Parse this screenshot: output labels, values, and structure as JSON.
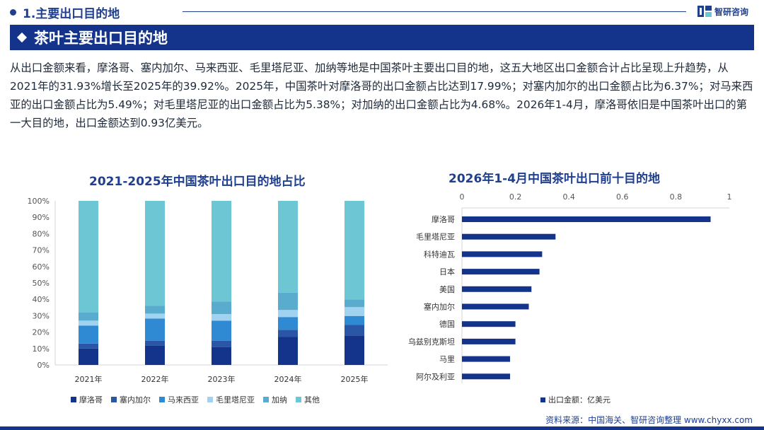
{
  "header": {
    "section_title": "1.主要出口目的地",
    "brand_name": "智研咨询",
    "banner_title": "茶叶主要出口目的地"
  },
  "intro_text": "从出口金额来看，摩洛哥、塞内加尔、马来西亚、毛里塔尼亚、加纳等地是中国茶叶主要出口目的地，这五大地区出口金额合计占比呈现上升趋势，从2021年的31.93%增长至2025年的39.92%。2025年，中国茶叶对摩洛哥的出口金额占比达到17.99%；对塞内加尔的出口金额占比为6.37%；对马来西亚的出口金额占比为5.49%；对毛里塔尼亚的出口金额占比为5.38%；对加纳的出口金额占比为4.68%。2026年1-4月，摩洛哥依旧是中国茶叶出口的第一大目的地，出口金额达到0.93亿美元。",
  "colors": {
    "brand_navy": "#13348a",
    "title_blue": "#1f3f8f"
  },
  "chart_data": [
    {
      "type": "bar",
      "stacked": true,
      "title": "2021-2025年中国茶叶出口目的地占比",
      "categories": [
        "2021年",
        "2022年",
        "2023年",
        "2024年",
        "2025年"
      ],
      "ylim": [
        0,
        100
      ],
      "y_ticks": [
        "0%",
        "10%",
        "20%",
        "30%",
        "40%",
        "50%",
        "60%",
        "70%",
        "80%",
        "90%",
        "100%"
      ],
      "grid": false,
      "legend_position": "bottom",
      "series": [
        {
          "name": "摩洛哥",
          "color": "#13348a",
          "values": [
            10.0,
            11.8,
            10.8,
            17.2,
            17.99
          ]
        },
        {
          "name": "塞内加尔",
          "color": "#2a56a8",
          "values": [
            3.0,
            3.0,
            4.0,
            4.2,
            6.37
          ]
        },
        {
          "name": "马来西亚",
          "color": "#2f8ad3",
          "values": [
            11.0,
            13.5,
            12.2,
            7.8,
            5.49
          ]
        },
        {
          "name": "毛里塔尼亚",
          "color": "#9fd3ef",
          "values": [
            3.0,
            3.0,
            4.0,
            4.3,
            5.38
          ]
        },
        {
          "name": "加纳",
          "color": "#5aacce",
          "values": [
            4.9,
            4.7,
            7.6,
            10.5,
            4.68
          ]
        },
        {
          "name": "其他",
          "color": "#6cc6d4",
          "values": [
            68.1,
            64.0,
            61.4,
            56.0,
            60.08
          ]
        }
      ]
    },
    {
      "type": "bar",
      "orientation": "horizontal",
      "title": "2026年1-4月中国茶叶出口前十目的地",
      "categories": [
        "摩洛哥",
        "毛里塔尼亚",
        "科特迪瓦",
        "日本",
        "美国",
        "塞内加尔",
        "德国",
        "乌兹别克斯坦",
        "马里",
        "阿尔及利亚"
      ],
      "series": [
        {
          "name": "出口金额：亿美元",
          "color": "#13348a",
          "values": [
            0.93,
            0.35,
            0.3,
            0.29,
            0.26,
            0.25,
            0.2,
            0.2,
            0.18,
            0.18
          ]
        }
      ],
      "xlim": [
        0,
        1
      ],
      "x_ticks": [
        "0",
        "0.2",
        "0.4",
        "0.6",
        "0.8",
        "1"
      ],
      "x_axis_position": "top",
      "grid": false,
      "legend_position": "bottom"
    }
  ],
  "source": "资料来源：中国海关、智研咨询整理   www.chyxx.com"
}
